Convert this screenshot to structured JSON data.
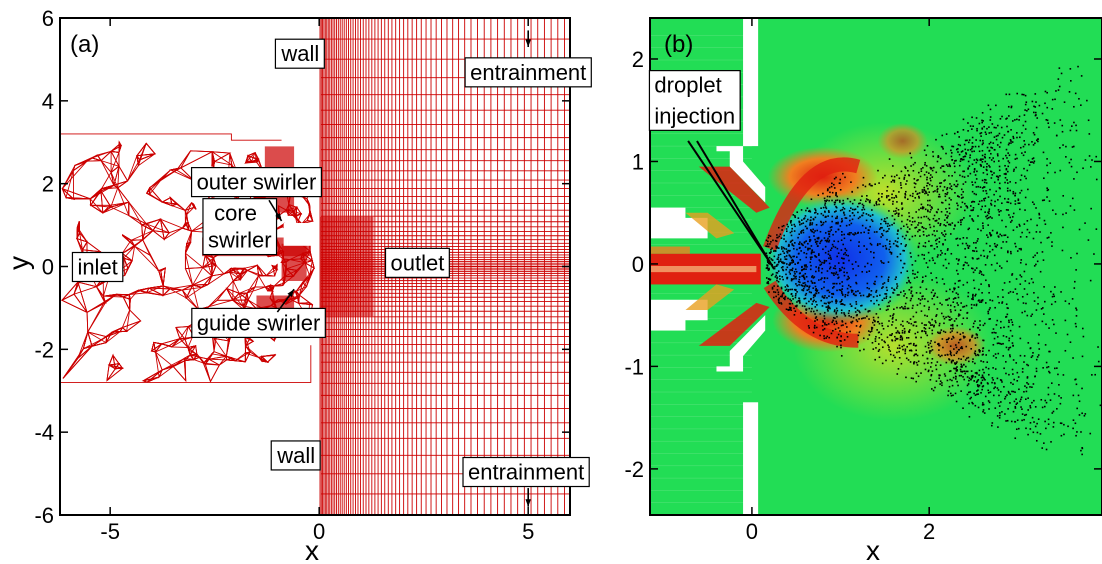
{
  "chart_data": [
    {
      "type": "mesh",
      "panel_label": "(a)",
      "xlabel": "x",
      "ylabel": "y",
      "xlim": [
        -6.2,
        6.0
      ],
      "ylim": [
        -6.0,
        6.0
      ],
      "xticks": [
        -5,
        0,
        5
      ],
      "xtick_labels": [
        "-5",
        "0",
        "5"
      ],
      "yticks": [
        -6,
        -4,
        -2,
        0,
        2,
        4,
        6
      ],
      "ytick_labels": [
        "-6",
        "-4",
        "-2",
        "0",
        "2",
        "4",
        "6"
      ],
      "mesh_color": "#cc0000",
      "annotations": [
        {
          "text": "wall",
          "x": -0.45,
          "y": 5.15
        },
        {
          "text": "entrainment",
          "x": 5.0,
          "y": 4.7
        },
        {
          "text": "outer swirler",
          "x": -1.5,
          "y": 2.05
        },
        {
          "text": "core",
          "x": -2.0,
          "y": 1.3
        },
        {
          "text": "swirler",
          "x": -1.9,
          "y": 0.65
        },
        {
          "text": "inlet",
          "x": -5.3,
          "y": 0.0
        },
        {
          "text": "outlet",
          "x": 2.35,
          "y": 0.1
        },
        {
          "text": "guide swirler",
          "x": -1.45,
          "y": -1.35
        },
        {
          "text": "wall",
          "x": -0.55,
          "y": -4.55
        },
        {
          "text": "entrainment",
          "x": 4.95,
          "y": -4.95
        }
      ]
    },
    {
      "type": "heatmap",
      "panel_label": "(b)",
      "xlabel": "x",
      "ylabel": "",
      "xlim": [
        -1.15,
        3.95
      ],
      "ylim": [
        -2.45,
        2.4
      ],
      "xticks": [
        0,
        2
      ],
      "xtick_labels": [
        "0",
        "2"
      ],
      "yticks": [
        -2,
        -1,
        0,
        1,
        2
      ],
      "ytick_labels": [
        "-2",
        "-1",
        "0",
        "1",
        "2"
      ],
      "annotations": [
        {
          "text": "droplet",
          "x": -0.3,
          "y": 1.75
        },
        {
          "text": "injection",
          "x": -0.3,
          "y": 1.45
        }
      ],
      "colors": {
        "background": "#22dd55",
        "high": "#e02010",
        "low": "#1040e0",
        "mid": "#e8e020",
        "particles": "#000000"
      }
    }
  ]
}
